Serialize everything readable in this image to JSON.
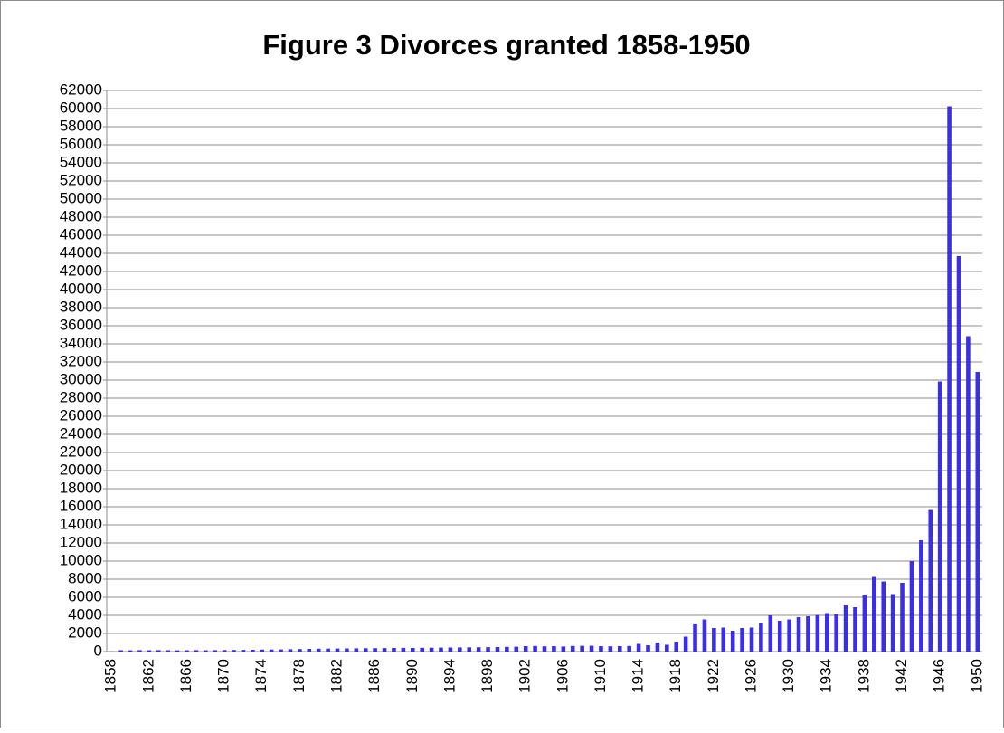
{
  "chart_data": {
    "type": "bar",
    "title": "Figure 3 Divorces granted 1858-1950",
    "categories": [
      "1858",
      null,
      null,
      null,
      "1862",
      null,
      null,
      null,
      "1866",
      null,
      null,
      null,
      "1870",
      null,
      null,
      null,
      "1874",
      null,
      null,
      null,
      "1878",
      null,
      null,
      null,
      "1882",
      null,
      null,
      null,
      "1886",
      null,
      null,
      null,
      "1890",
      null,
      null,
      null,
      "1894",
      null,
      null,
      null,
      "1898",
      null,
      null,
      null,
      "1902",
      null,
      null,
      null,
      "1906",
      null,
      null,
      null,
      "1910",
      null,
      null,
      null,
      "1914",
      null,
      null,
      null,
      "1918",
      null,
      null,
      null,
      "1922",
      null,
      null,
      null,
      "1926",
      null,
      null,
      null,
      "1930",
      null,
      null,
      null,
      "1934",
      null,
      null,
      null,
      "1938",
      null,
      null,
      null,
      "1942",
      null,
      null,
      null,
      "1946",
      null,
      null,
      null,
      "1950"
    ],
    "values": [
      20,
      150,
      140,
      160,
      150,
      160,
      150,
      140,
      150,
      160,
      150,
      160,
      170,
      180,
      190,
      200,
      220,
      230,
      240,
      260,
      280,
      300,
      320,
      330,
      340,
      350,
      360,
      370,
      380,
      390,
      400,
      410,
      400,
      420,
      430,
      440,
      450,
      460,
      470,
      480,
      490,
      500,
      520,
      540,
      600,
      620,
      580,
      600,
      560,
      620,
      640,
      650,
      600,
      580,
      600,
      620,
      850,
      700,
      1000,
      750,
      1100,
      1650,
      3100,
      3550,
      2600,
      2650,
      2300,
      2600,
      2650,
      3200,
      4000,
      3400,
      3550,
      3800,
      3900,
      4050,
      4250,
      4100,
      5100,
      4900,
      6250,
      8250,
      7750,
      6350,
      7600,
      10000,
      12300,
      15650,
      29850,
      60250,
      43700,
      34850,
      30900
    ],
    "color": "#3a2fe6",
    "ylim": [
      0,
      62000
    ],
    "yticks": [
      0,
      2000,
      4000,
      6000,
      8000,
      10000,
      12000,
      14000,
      16000,
      18000,
      20000,
      22000,
      24000,
      26000,
      28000,
      30000,
      32000,
      34000,
      36000,
      38000,
      40000,
      42000,
      44000,
      46000,
      48000,
      50000,
      52000,
      54000,
      56000,
      58000,
      60000,
      62000
    ],
    "grid": true
  }
}
